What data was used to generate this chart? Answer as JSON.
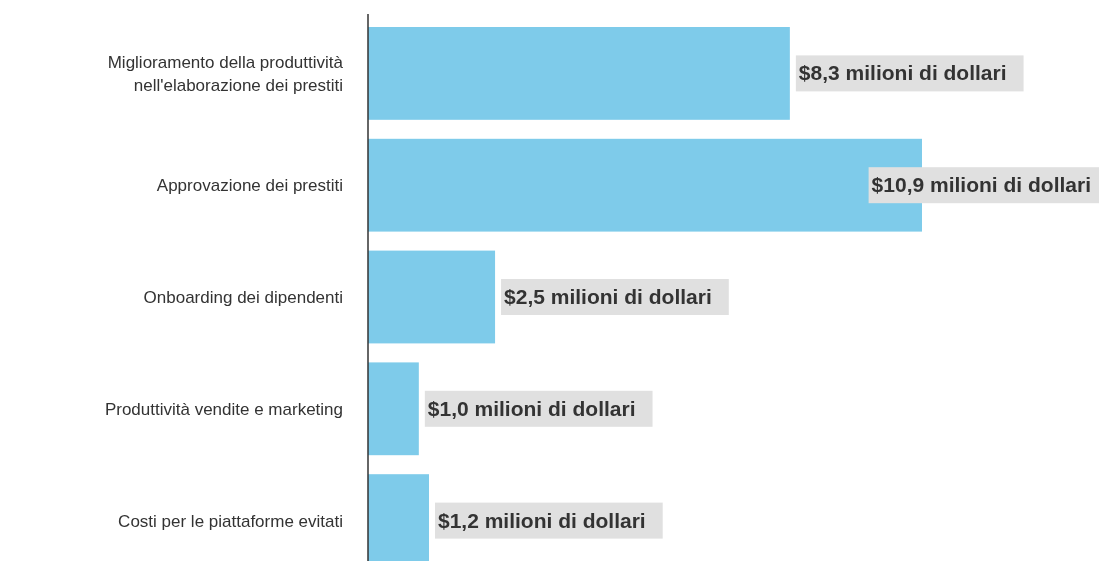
{
  "chart_data": {
    "type": "bar",
    "orientation": "horizontal",
    "categories": [
      "Miglioramento della produttività nell'elaborazione dei prestiti",
      "Approvazione dei prestiti",
      "Onboarding dei dipendenti",
      "Produttività vendite e marketing",
      "Costi per le piattaforme evitati"
    ],
    "values": [
      8.3,
      10.9,
      2.5,
      1.0,
      1.2
    ],
    "value_labels": [
      "$8,3 milioni di dollari",
      "$10,9 milioni di dollari",
      "$2,5 milioni di dollari",
      "$1,0 milioni di dollari",
      "$1,2 milioni di dollari"
    ],
    "color": "#7ecbea"
  }
}
